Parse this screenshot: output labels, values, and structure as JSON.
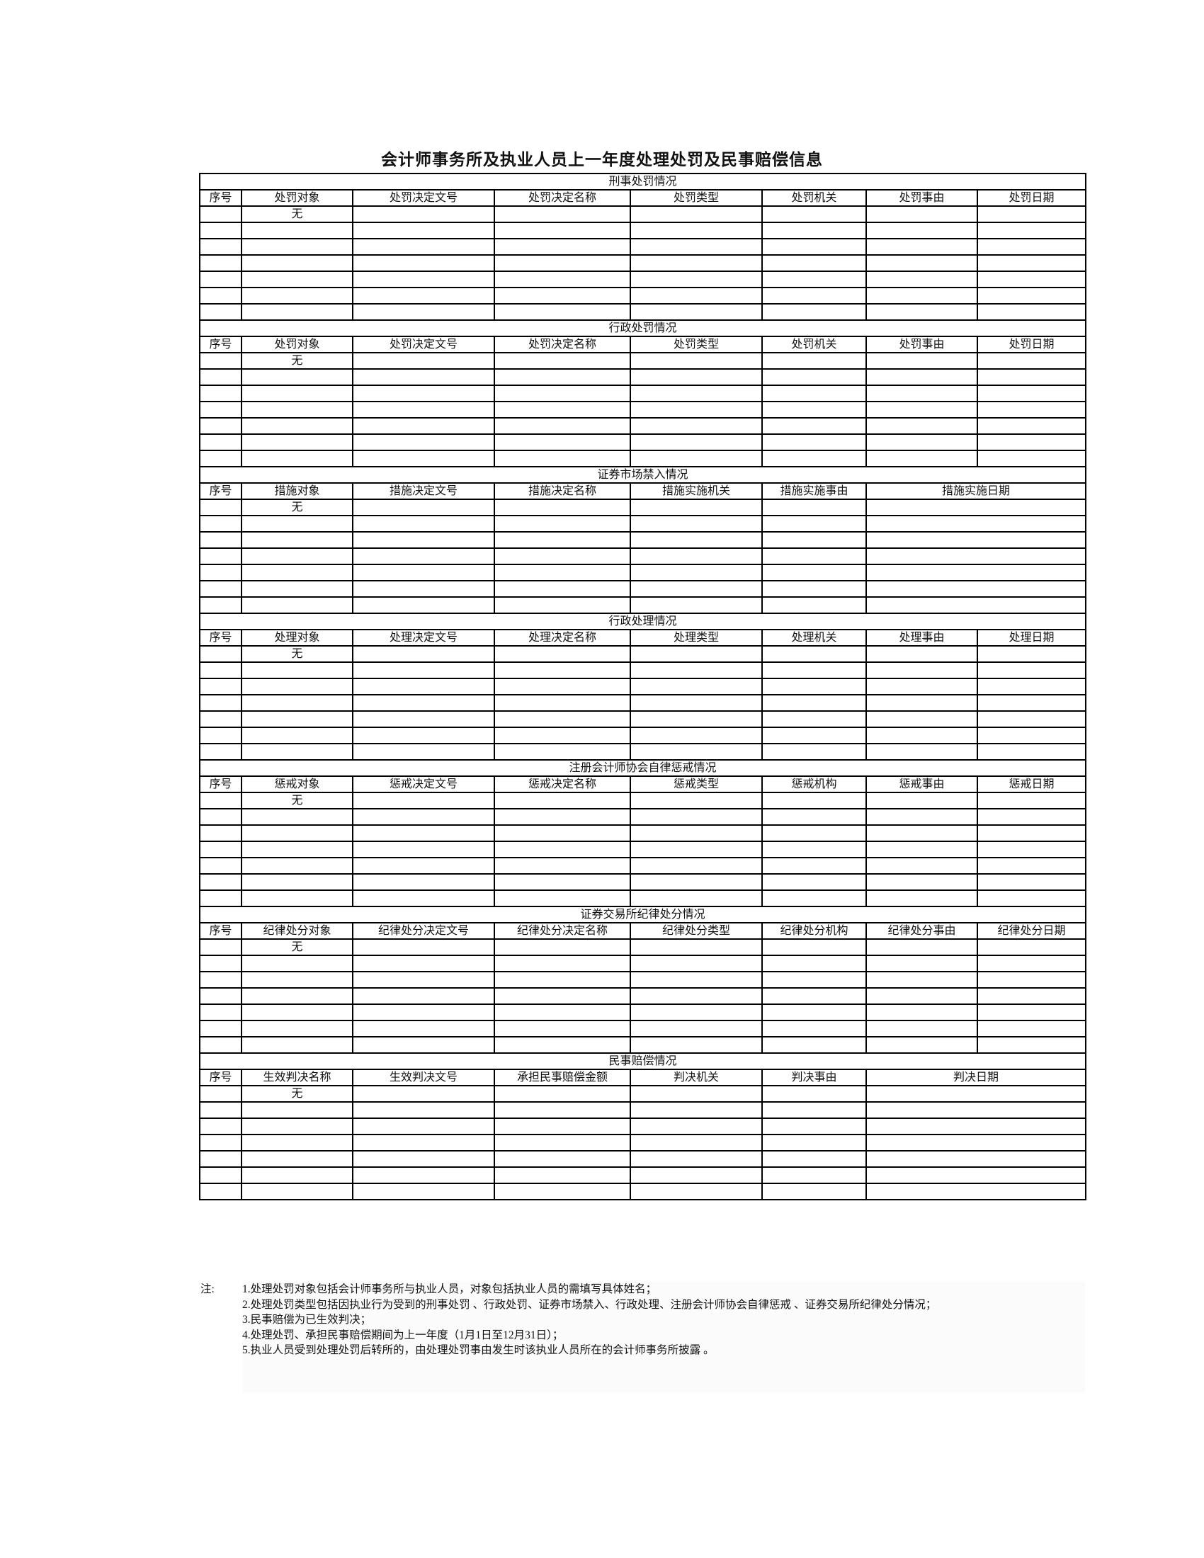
{
  "title": "会计师事务所及执业人员上一年度处理处罚及民事赔偿信息",
  "sections": [
    {
      "title": "刑事处罚情况",
      "headers": [
        "序号",
        "处罚对象",
        "处罚决定文号",
        "处罚决定名称",
        "处罚类型",
        "处罚机关",
        "处罚事由",
        "处罚日期"
      ],
      "merged_last": false,
      "first_row_value": "无",
      "data_rows": 7
    },
    {
      "title": "行政处罚情况",
      "headers": [
        "序号",
        "处罚对象",
        "处罚决定文号",
        "处罚决定名称",
        "处罚类型",
        "处罚机关",
        "处罚事由",
        "处罚日期"
      ],
      "merged_last": false,
      "first_row_value": "无",
      "data_rows": 7
    },
    {
      "title": "证券市场禁入情况",
      "headers": [
        "序号",
        "措施对象",
        "措施决定文号",
        "措施决定名称",
        "措施实施机关",
        "措施实施事由",
        "措施实施日期"
      ],
      "merged_last": true,
      "first_row_value": "无",
      "data_rows": 7
    },
    {
      "title": "行政处理情况",
      "headers": [
        "序号",
        "处理对象",
        "处理决定文号",
        "处理决定名称",
        "处理类型",
        "处理机关",
        "处理事由",
        "处理日期"
      ],
      "merged_last": false,
      "first_row_value": "无",
      "data_rows": 7
    },
    {
      "title": "注册会计师协会自律惩戒情况",
      "headers": [
        "序号",
        "惩戒对象",
        "惩戒决定文号",
        "惩戒决定名称",
        "惩戒类型",
        "惩戒机构",
        "惩戒事由",
        "惩戒日期"
      ],
      "merged_last": false,
      "first_row_value": "无",
      "data_rows": 7
    },
    {
      "title": "证券交易所纪律处分情况",
      "headers": [
        "序号",
        "纪律处分对象",
        "纪律处分决定文号",
        "纪律处分决定名称",
        "纪律处分类型",
        "纪律处分机构",
        "纪律处分事由",
        "纪律处分日期"
      ],
      "merged_last": false,
      "first_row_value": "无",
      "data_rows": 7
    },
    {
      "title": "民事赔偿情况",
      "headers": [
        "序号",
        "生效判决名称",
        "生效判决文号",
        "承担民事赔偿金额",
        "判决机关",
        "判决事由",
        "判决日期"
      ],
      "merged_last": true,
      "first_row_value": "无",
      "data_rows": 7
    }
  ],
  "notes": {
    "label": "注:",
    "items": [
      "1.处理处罚对象包括会计师事务所与执业人员，对象包括执业人员的需填写具体姓名；",
      "2.处理处罚类型包括因执业行为受到的刑事处罚 、行政处罚、证券市场禁入、行政处理、注册会计师协会自律惩戒 、证券交易所纪律处分情况；",
      "3.民事赔偿为已生效判决；",
      "4.处理处罚、承担民事赔偿期间为上一年度（1月1日至12月31日）；",
      "5.执业人员受到处理处罚后转所的，由处理处罚事由发生时该执业人员所在的会计师事务所披露 。"
    ]
  }
}
